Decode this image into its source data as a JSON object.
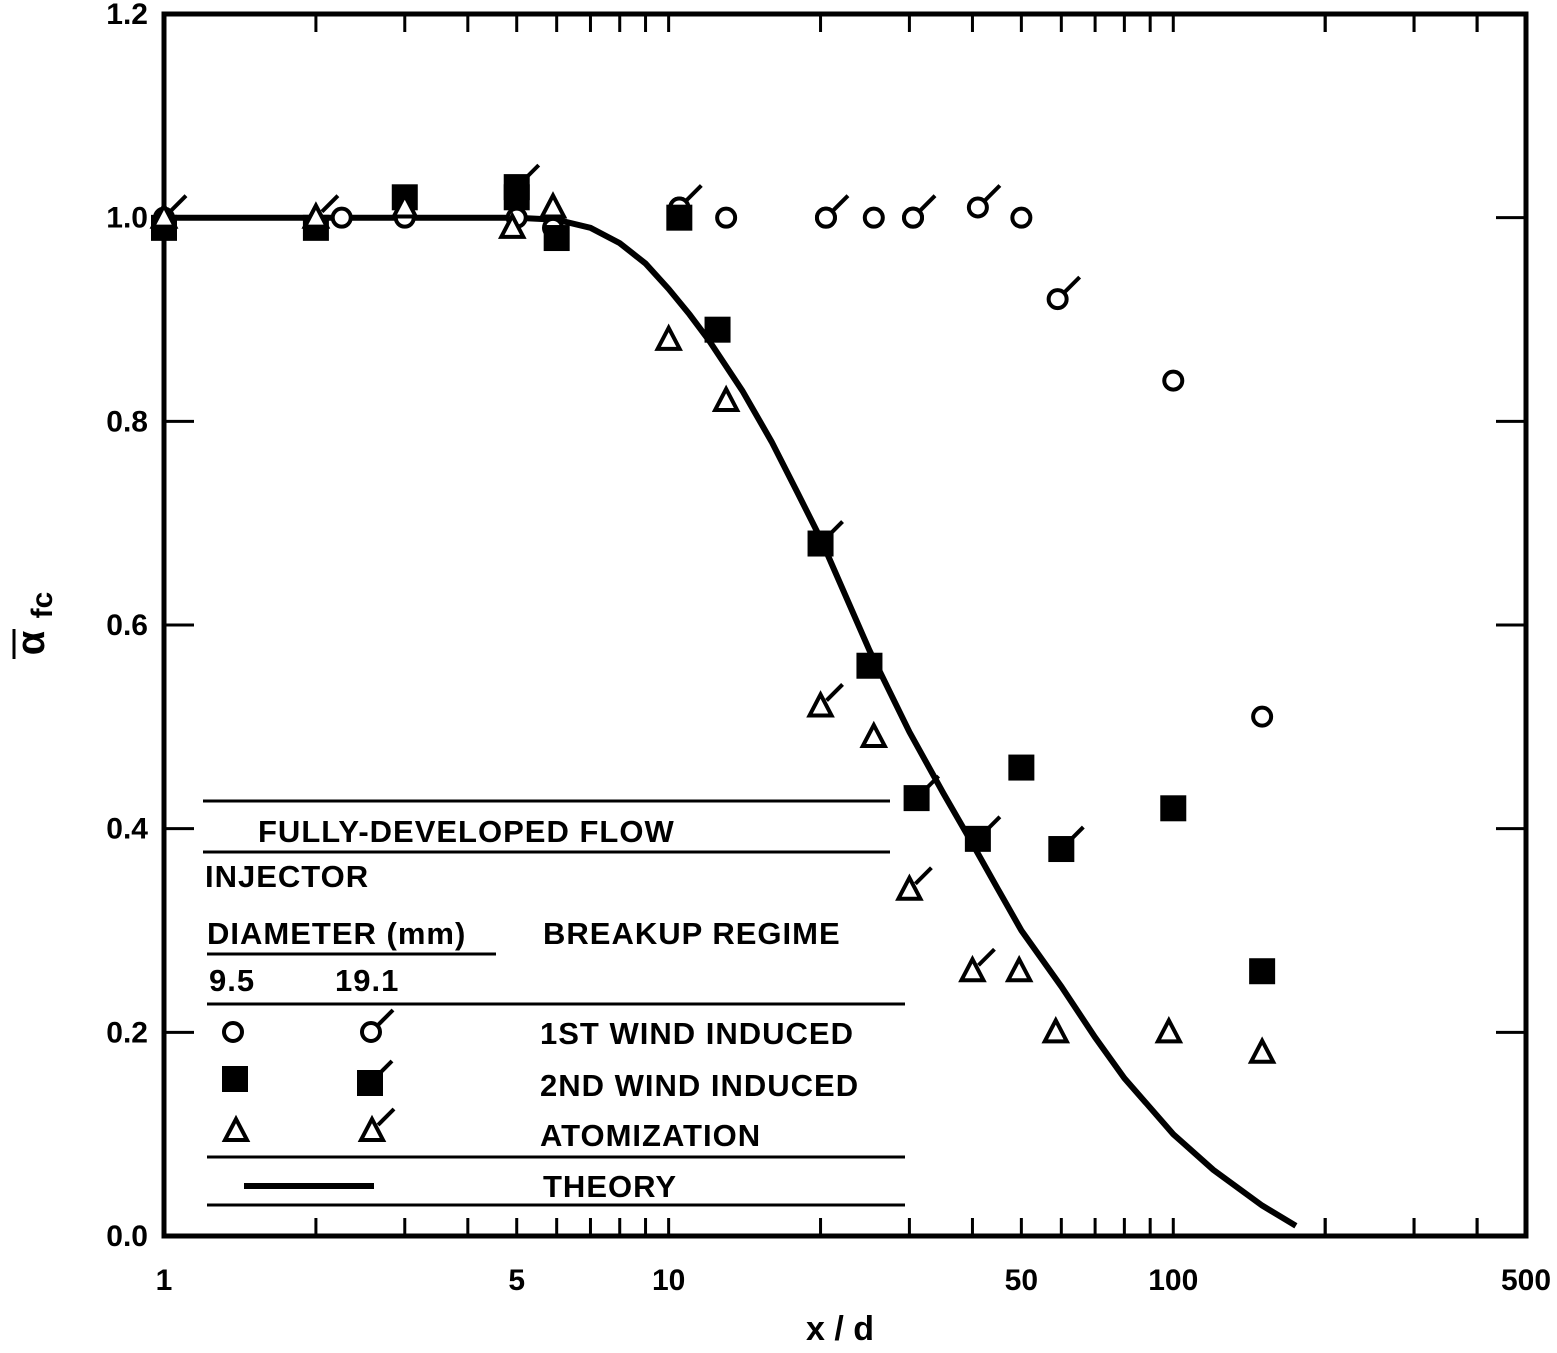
{
  "chart_data": {
    "type": "scatter",
    "xlabel": "x / d",
    "ylabel": "α",
    "ylabel_subscript": "fc",
    "x_scale": "log",
    "xlim": [
      1,
      500
    ],
    "ylim": [
      0.0,
      1.2
    ],
    "x_tick_labels": [
      "1",
      "5",
      "10",
      "50",
      "100",
      "500"
    ],
    "y_tick_labels": [
      "0.0",
      "0.2",
      "0.4",
      "0.6",
      "0.8",
      "1.0",
      "1.2"
    ],
    "grid": false,
    "legend": {
      "header": "FULLY-DEVELOPED FLOW",
      "injector_label": "INJECTOR",
      "diameter_label": "DIAMETER (mm)",
      "regime_label": "BREAKUP REGIME",
      "d1": "9.5",
      "d2": "19.1",
      "rows": [
        "1ST WIND INDUCED",
        "2ND WIND INDUCED",
        "ATOMIZATION",
        "THEORY"
      ]
    },
    "series": [
      {
        "name": "1ST WIND INDUCED",
        "marker": "circle",
        "diameter": "9.5",
        "x": [
          1.0,
          2.25,
          3.0,
          5.0,
          5.9,
          10.5,
          13.0,
          20.5,
          25.5,
          30.5,
          50.0,
          100.0,
          150.0
        ],
        "y": [
          1.0,
          1.0,
          1.0,
          1.0,
          0.99,
          1.01,
          1.0,
          1.0,
          1.0,
          1.0,
          1.0,
          0.84,
          0.51
        ]
      },
      {
        "name": "1ST WIND INDUCED",
        "marker": "circle-flag",
        "diameter": "19.1",
        "x": [
          10.5,
          20.5,
          30.5,
          41.0,
          59.0
        ],
        "y": [
          1.01,
          1.0,
          1.0,
          1.01,
          0.92
        ]
      },
      {
        "name": "2ND WIND INDUCED",
        "marker": "square",
        "diameter": "9.5",
        "x": [
          1.0,
          2.0,
          3.0,
          5.0,
          6.0,
          10.5,
          12.5,
          25.0,
          50.0,
          100.0,
          150.0
        ],
        "y": [
          0.99,
          0.99,
          1.02,
          1.02,
          0.98,
          1.0,
          0.89,
          0.56,
          0.46,
          0.42,
          0.26
        ]
      },
      {
        "name": "2ND WIND INDUCED",
        "marker": "square-flag",
        "diameter": "19.1",
        "x": [
          5.0,
          20.0,
          31.0,
          41.0,
          60.0
        ],
        "y": [
          1.03,
          0.68,
          0.43,
          0.39,
          0.38
        ]
      },
      {
        "name": "ATOMIZATION",
        "marker": "triangle",
        "diameter": "9.5",
        "x": [
          1.0,
          2.0,
          3.0,
          4.9,
          5.9,
          10.0,
          13.0,
          25.5,
          49.5,
          58.5,
          98.0,
          150.0
        ],
        "y": [
          1.0,
          1.0,
          1.01,
          0.99,
          1.01,
          0.88,
          0.82,
          0.49,
          0.26,
          0.2,
          0.2,
          0.18
        ]
      },
      {
        "name": "ATOMIZATION",
        "marker": "triangle-flag",
        "diameter": "19.1",
        "x": [
          1.0,
          2.0,
          20.0,
          30.0,
          40.0
        ],
        "y": [
          1.0,
          1.0,
          0.52,
          0.34,
          0.26
        ]
      },
      {
        "name": "THEORY",
        "marker": "line",
        "x": [
          1.0,
          5.0,
          6.0,
          7.0,
          8.0,
          9.0,
          10.0,
          11.0,
          12.0,
          14.0,
          16.0,
          18.0,
          20.0,
          25.0,
          30.0,
          35.0,
          40.0,
          45.0,
          50.0,
          60.0,
          70.0,
          80.0,
          100.0,
          120.0,
          150.0,
          175.0
        ],
        "y": [
          1.0,
          1.0,
          0.998,
          0.99,
          0.975,
          0.955,
          0.93,
          0.905,
          0.88,
          0.83,
          0.78,
          0.73,
          0.685,
          0.575,
          0.495,
          0.435,
          0.385,
          0.34,
          0.3,
          0.245,
          0.195,
          0.155,
          0.1,
          0.065,
          0.03,
          0.01
        ]
      }
    ]
  }
}
